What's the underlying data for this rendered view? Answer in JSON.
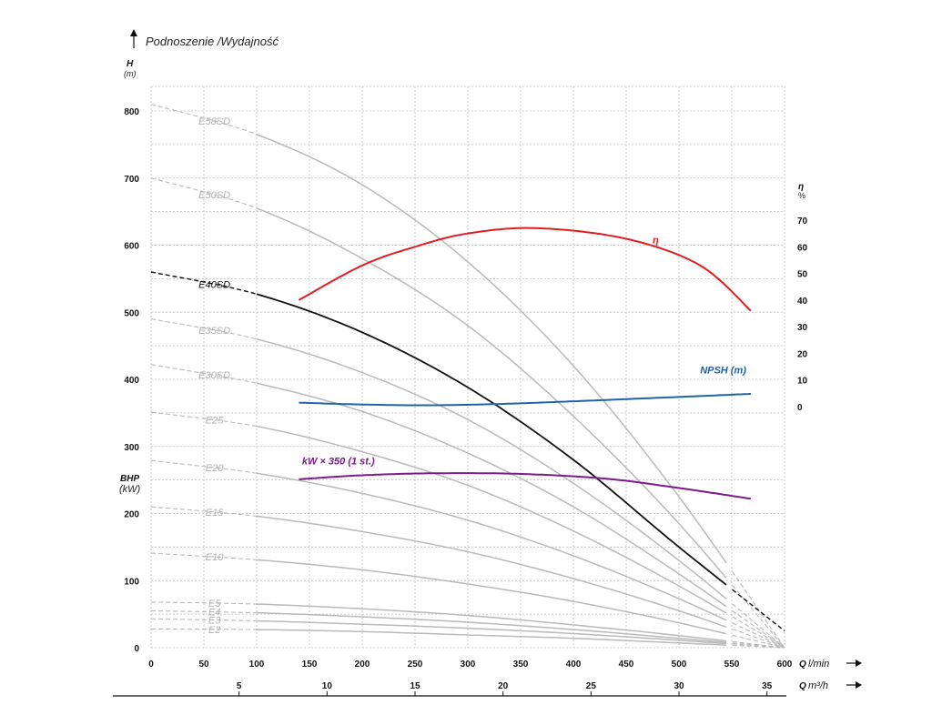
{
  "title": "Podnoszenie /Wydajność",
  "left_axis": {
    "name": "H",
    "unit": "(m)",
    "ticks": [
      0,
      100,
      200,
      300,
      400,
      500,
      600,
      700,
      800
    ]
  },
  "bhp_axis": {
    "name": "BHP",
    "unit": "(kW)"
  },
  "right_axis": {
    "name": "η",
    "unit": "%",
    "ticks": [
      0,
      10,
      20,
      30,
      40,
      50,
      60,
      70
    ]
  },
  "x_axis_lmin": {
    "label_q": "Q",
    "label_unit": "l/min",
    "ticks": [
      0,
      50,
      100,
      150,
      200,
      250,
      300,
      350,
      400,
      450,
      500,
      550,
      600
    ]
  },
  "x_axis_m3h": {
    "label_q": "Q",
    "label_unit": "m³/h",
    "ticks": [
      5,
      10,
      15,
      20,
      25,
      30,
      35
    ]
  },
  "colors": {
    "grey": "#b9b9b9",
    "black": "#111111",
    "eta": "#e01e22",
    "npsh": "#1f63a8",
    "kw": "#7d1a8c"
  },
  "chart_data": {
    "type": "line",
    "x_unit": "l/min",
    "xlim": [
      0,
      600
    ],
    "ylim": [
      0,
      800
    ],
    "eta_ylim": [
      0,
      70
    ],
    "pump_curves": [
      {
        "name": "E58SD",
        "highlight": false,
        "x": [
          0,
          100,
          200,
          300,
          400,
          500,
          600
        ],
        "y": [
          810,
          765,
          690,
          575,
          420,
          225,
          0
        ]
      },
      {
        "name": "E50SD",
        "highlight": false,
        "x": [
          0,
          100,
          200,
          300,
          400,
          500,
          600
        ],
        "y": [
          700,
          655,
          580,
          480,
          345,
          185,
          0
        ]
      },
      {
        "name": "E40SD",
        "highlight": true,
        "x": [
          0,
          100,
          200,
          300,
          400,
          500,
          600
        ],
        "y": [
          560,
          527,
          470,
          388,
          280,
          150,
          25
        ]
      },
      {
        "name": "E35SD",
        "highlight": false,
        "x": [
          0,
          100,
          200,
          300,
          400,
          500,
          600
        ],
        "y": [
          490,
          460,
          410,
          340,
          245,
          130,
          0
        ]
      },
      {
        "name": "E30SD",
        "highlight": false,
        "x": [
          0,
          100,
          200,
          300,
          400,
          500,
          600
        ],
        "y": [
          422,
          394,
          352,
          290,
          210,
          110,
          0
        ]
      },
      {
        "name": "E25",
        "highlight": false,
        "x": [
          0,
          100,
          200,
          300,
          400,
          500,
          600
        ],
        "y": [
          351,
          330,
          292,
          242,
          174,
          92,
          0
        ]
      },
      {
        "name": "E20",
        "highlight": false,
        "x": [
          0,
          100,
          200,
          300,
          400,
          500,
          600
        ],
        "y": [
          279,
          260,
          230,
          190,
          137,
          73,
          0
        ]
      },
      {
        "name": "E15",
        "highlight": false,
        "x": [
          0,
          100,
          200,
          300,
          400,
          500,
          600
        ],
        "y": [
          210,
          196,
          173,
          143,
          103,
          55,
          0
        ]
      },
      {
        "name": "E10",
        "highlight": false,
        "x": [
          0,
          100,
          200,
          300,
          400,
          500,
          600
        ],
        "y": [
          141,
          131,
          116,
          95,
          69,
          37,
          0
        ]
      },
      {
        "name": "E5",
        "highlight": false,
        "x": [
          0,
          100,
          200,
          300,
          400,
          500,
          600
        ],
        "y": [
          68,
          65,
          58,
          48,
          34,
          18,
          0
        ]
      },
      {
        "name": "E4",
        "highlight": false,
        "x": [
          0,
          100,
          200,
          300,
          400,
          500,
          600
        ],
        "y": [
          55,
          52,
          46,
          38,
          27,
          14,
          0
        ]
      },
      {
        "name": "E3",
        "highlight": false,
        "x": [
          0,
          100,
          200,
          300,
          400,
          500,
          600
        ],
        "y": [
          43,
          40,
          35,
          29,
          21,
          11,
          0
        ]
      },
      {
        "name": "E2",
        "highlight": false,
        "x": [
          0,
          100,
          200,
          300,
          400,
          500,
          600
        ],
        "y": [
          28,
          27,
          24,
          19,
          14,
          7,
          0
        ]
      }
    ],
    "eta": {
      "name": "η",
      "axis": "right",
      "x": [
        140,
        200,
        250,
        300,
        365,
        450,
        520,
        568
      ],
      "y": [
        40,
        53,
        60,
        65,
        67,
        63,
        53,
        36
      ]
    },
    "npsh": {
      "name": "NPSH (m)",
      "axis": "right",
      "x": [
        140,
        200,
        260,
        330,
        400,
        480,
        568
      ],
      "y": [
        1.5,
        0.8,
        0.5,
        1,
        2,
        3.3,
        4.8
      ]
    },
    "kw": {
      "name": "kW × 350 (1 st.)",
      "axis": "left",
      "x": [
        140,
        200,
        270,
        350,
        430,
        500,
        568
      ],
      "y": [
        251,
        257,
        260,
        259,
        252,
        238,
        222
      ]
    }
  }
}
